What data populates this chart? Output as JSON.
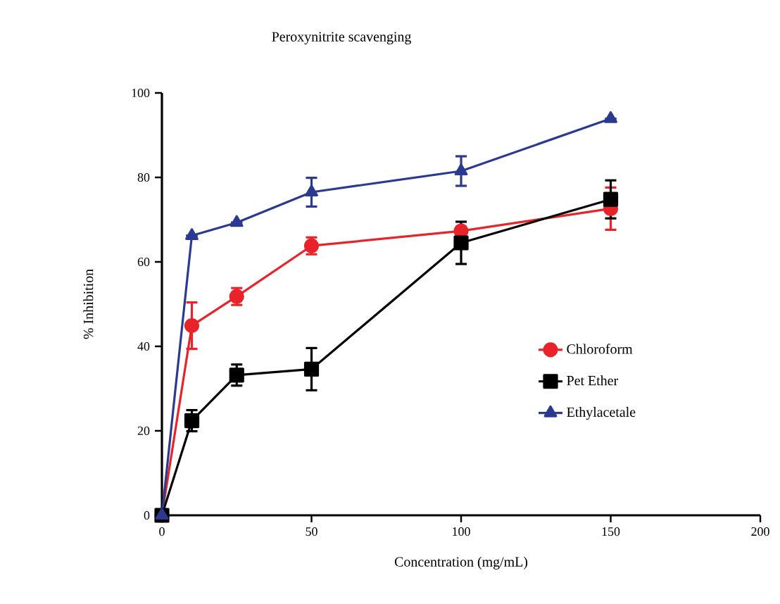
{
  "chart_data": {
    "type": "line",
    "title": "Peroxynitrite scavenging",
    "xlabel": "Concentration (mg/mL)",
    "ylabel": "% Inhibition",
    "x": [
      0,
      10,
      25,
      50,
      100,
      150
    ],
    "series": [
      {
        "name": "Chloroform",
        "color": "#e8232a",
        "marker": "circle",
        "values": [
          0,
          44.9,
          51.8,
          63.8,
          67.3,
          72.6
        ],
        "errors": [
          null,
          5.5,
          2,
          2,
          1,
          5
        ]
      },
      {
        "name": "Pet Ether",
        "color": "#000000",
        "marker": "square",
        "values": [
          0,
          22.4,
          33.2,
          34.6,
          64.5,
          74.8
        ],
        "errors": [
          null,
          2.5,
          2.5,
          5,
          5,
          4.5
        ]
      },
      {
        "name": "Ethylacetale",
        "color": "#2b3990",
        "marker": "triangle",
        "values": [
          0,
          66.2,
          69.3,
          76.5,
          81.5,
          93.9
        ],
        "errors": [
          null,
          null,
          null,
          3.4,
          3.5,
          null
        ]
      }
    ],
    "xlim": [
      0,
      200
    ],
    "ylim": [
      0,
      100
    ],
    "xticks": [
      0,
      50,
      100,
      150,
      200
    ],
    "yticks": [
      0,
      20,
      40,
      60,
      80,
      100
    ],
    "grid": false,
    "legend": "right",
    "line_style": "solid"
  }
}
